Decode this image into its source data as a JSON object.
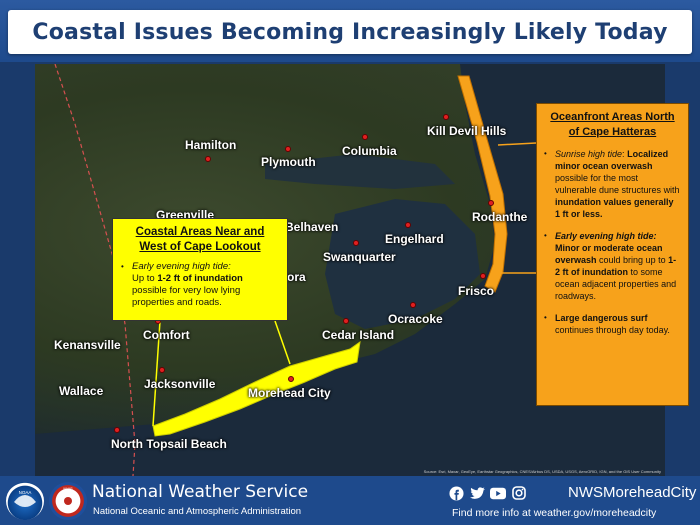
{
  "title": "Coastal Issues Becoming Increasingly Likely Today",
  "map": {
    "towns": [
      {
        "label": "Hamilton"
      },
      {
        "label": "Plymouth"
      },
      {
        "label": "Columbia"
      },
      {
        "label": "Kill Devil Hills"
      },
      {
        "label": "Greenville"
      },
      {
        "label": "Belhaven"
      },
      {
        "label": "Engelhard"
      },
      {
        "label": "Rodanthe"
      },
      {
        "label": "Swanquarter"
      },
      {
        "label": "ora"
      },
      {
        "label": "Frisco"
      },
      {
        "label": "Ocracoke"
      },
      {
        "label": "Kenansville"
      },
      {
        "label": "Comfort"
      },
      {
        "label": "Cedar Island"
      },
      {
        "label": "Jacksonville"
      },
      {
        "label": "Wallace"
      },
      {
        "label": "Morehead City"
      },
      {
        "label": "North Topsail Beach"
      }
    ],
    "attribution": "Source: Esri, Maxar, GeoEye, Earthstar Geographics, CNES/Airbus DS, USDA, USGS, AeroGRID, IGN, and the GIS User Community",
    "colors": {
      "yellow_zone": "#ffff00",
      "orange_zone": "#f7a21b",
      "city_dot": "#e02020"
    }
  },
  "yellow_callout": {
    "heading": "Coastal Areas Near and West of Cape Lookout",
    "bullet_lead": "Early evening high tide:",
    "bullet_text_1": "Up to ",
    "bullet_bold": "1-2 ft of inundation",
    "bullet_text_2": " possible for very low lying properties and roads."
  },
  "orange_callout": {
    "heading": "Oceanfront Areas North of Cape Hatteras",
    "b1_lead": "Sunrise high tide",
    "b1_colon": ":",
    "b1_bold1": "Localized minor ocean overwash",
    "b1_text": " possible for the most vulnerable dune structures with ",
    "b1_bold2": "inundation values generally 1 ft or less.",
    "b2_lead": "Early evening high tide:",
    "b2_bold1": "Minor or moderate ocean overwash",
    "b2_text1": " could bring up to ",
    "b2_bold2": "1-2 ft of inundation",
    "b2_text2": " to some ocean adjacent properties and roadways.",
    "b3_bold": "Large dangerous surf",
    "b3_text": " continues through day today."
  },
  "footer": {
    "agency": "National Weather Service",
    "subagency": "National Oceanic and Atmospheric Administration",
    "noaa_logo_text": "NOAA",
    "nws_logo_text": "NWS",
    "social_icons": [
      "facebook-icon",
      "twitter-icon",
      "youtube-icon",
      "instagram-icon"
    ],
    "handle": "NWSMoreheadCity",
    "find_more": "Find more info at weather.gov/moreheadcity"
  }
}
